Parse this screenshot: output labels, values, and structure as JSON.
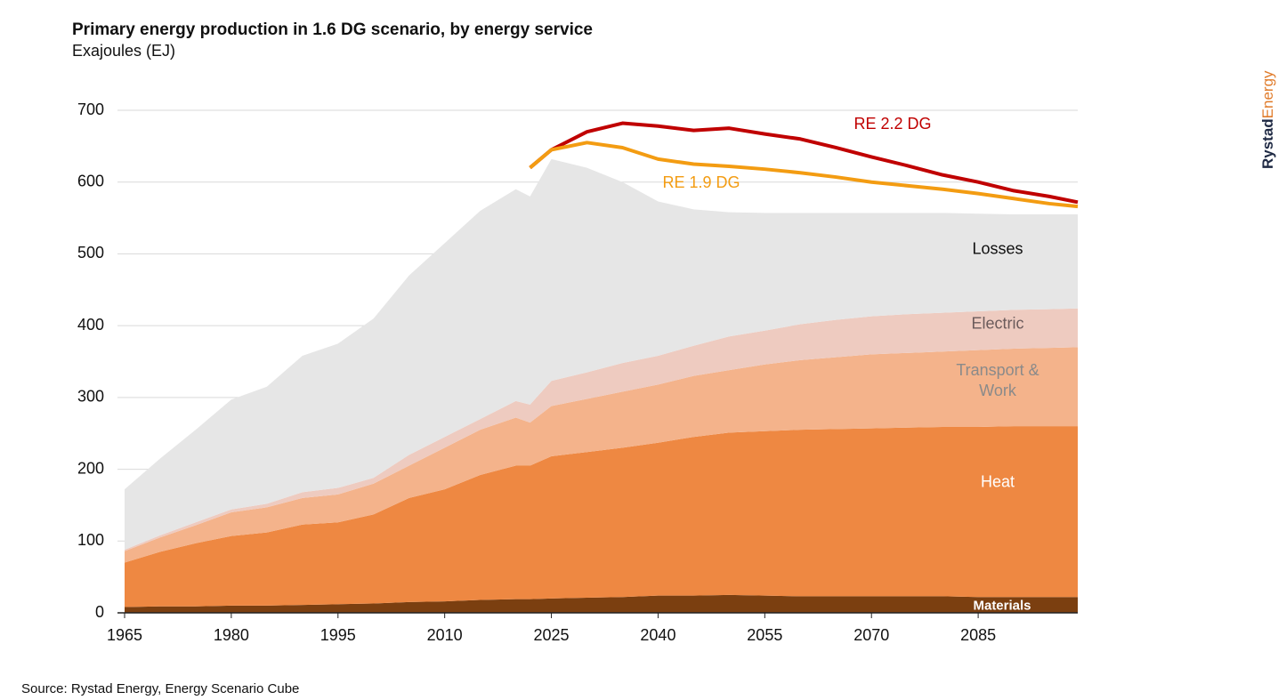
{
  "chart_data": {
    "type": "stacked_area",
    "title": "Primary energy production in 1.6 DG scenario, by energy service",
    "subtitle": "Exajoules (EJ)",
    "x": [
      1965,
      1970,
      1975,
      1980,
      1985,
      1990,
      1995,
      2000,
      2005,
      2010,
      2015,
      2020,
      2022,
      2025,
      2030,
      2035,
      2040,
      2045,
      2050,
      2055,
      2060,
      2065,
      2070,
      2075,
      2080,
      2085,
      2090,
      2095,
      2099
    ],
    "xlim": [
      1965,
      2099
    ],
    "xticks": [
      1965,
      1980,
      1995,
      2010,
      2025,
      2040,
      2055,
      2070,
      2085
    ],
    "ylim": [
      0,
      700
    ],
    "yticks": [
      0,
      100,
      200,
      300,
      400,
      500,
      600,
      700
    ],
    "grid": true,
    "series": [
      {
        "name": "Materials",
        "color": "#7b3f10",
        "label_color": "#ffffff",
        "values": [
          8,
          9,
          9,
          10,
          10,
          11,
          12,
          13,
          15,
          16,
          18,
          19,
          19,
          20,
          21,
          22,
          24,
          24,
          25,
          24,
          23,
          23,
          23,
          23,
          23,
          22,
          22,
          22,
          22
        ]
      },
      {
        "name": "Heat",
        "color": "#ee8842",
        "label_color": "#ffffff",
        "values": [
          62,
          76,
          88,
          97,
          102,
          112,
          114,
          124,
          145,
          156,
          174,
          186,
          186,
          198,
          203,
          208,
          213,
          221,
          226,
          229,
          232,
          233,
          234,
          235,
          236,
          237,
          238,
          238,
          238
        ]
      },
      {
        "name": "Transport & Work",
        "color": "#f4b38b",
        "label_color": "#8a8a8a",
        "values": [
          16,
          20,
          25,
          33,
          35,
          37,
          39,
          43,
          45,
          58,
          63,
          67,
          60,
          70,
          74,
          78,
          81,
          85,
          87,
          93,
          97,
          100,
          103,
          104,
          105,
          107,
          108,
          109,
          110
        ]
      },
      {
        "name": "Electric",
        "color": "#eecbc0",
        "label_color": "#6b5b5b",
        "values": [
          2,
          3,
          4,
          4,
          5,
          8,
          9,
          8,
          15,
          15,
          15,
          23,
          25,
          35,
          37,
          40,
          40,
          42,
          47,
          47,
          50,
          52,
          53,
          54,
          54,
          54,
          54,
          54,
          54
        ]
      },
      {
        "name": "Losses",
        "color": "#e6e6e6",
        "label_color": "#111111",
        "values": [
          84,
          107,
          129,
          153,
          163,
          190,
          201,
          222,
          250,
          270,
          290,
          295,
          290,
          309,
          285,
          252,
          215,
          190,
          173,
          164,
          155,
          149,
          144,
          141,
          139,
          136,
          133,
          132,
          131
        ]
      }
    ],
    "lines": [
      {
        "name": "RE 2.2 DG",
        "color": "#c00000",
        "values": [
          null,
          null,
          null,
          null,
          null,
          null,
          null,
          null,
          null,
          null,
          null,
          null,
          620,
          645,
          670,
          682,
          678,
          672,
          675,
          667,
          660,
          648,
          635,
          623,
          610,
          600,
          588,
          580,
          572
        ]
      },
      {
        "name": "RE 1.9 DG",
        "color": "#f39c12",
        "values": [
          null,
          null,
          null,
          null,
          null,
          null,
          null,
          null,
          null,
          null,
          null,
          null,
          620,
          645,
          655,
          648,
          632,
          625,
          622,
          618,
          613,
          607,
          600,
          595,
          590,
          584,
          577,
          570,
          566
        ]
      }
    ]
  },
  "source": "Source: Rystad Energy, Energy Scenario Cube",
  "brand_primary": "Rystad",
  "brand_secondary": "Energy"
}
